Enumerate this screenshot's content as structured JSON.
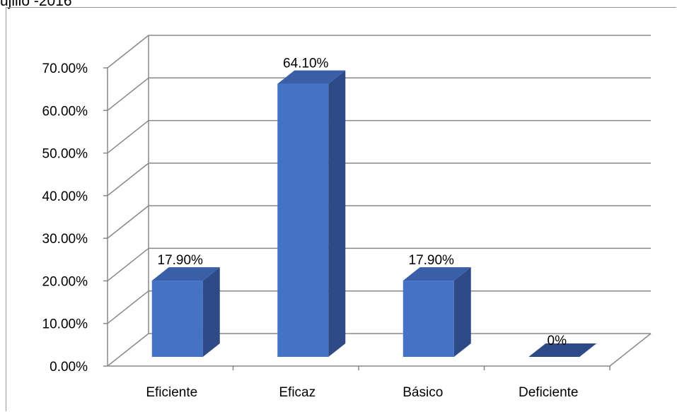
{
  "chart_data": {
    "type": "bar",
    "title": "ujillo -2016",
    "categories": [
      "Eficiente",
      "Eficaz",
      "Básico",
      "Deficiente"
    ],
    "values": [
      17.9,
      64.1,
      17.9,
      0
    ],
    "data_labels": [
      "17.90%",
      "64.10%",
      "17.90%",
      "0%"
    ],
    "y_tick_labels": [
      "0.00%",
      "10.00%",
      "20.00%",
      "30.00%",
      "40.00%",
      "50.00%",
      "60.00%",
      "70.00%"
    ],
    "ylim": [
      0,
      70
    ],
    "grid": true,
    "style": "3d-column",
    "colors": {
      "bar_front": "#4472C4",
      "bar_side": "#2E4A86",
      "bar_top": "#3A5FA8",
      "grid": "#888888"
    }
  }
}
